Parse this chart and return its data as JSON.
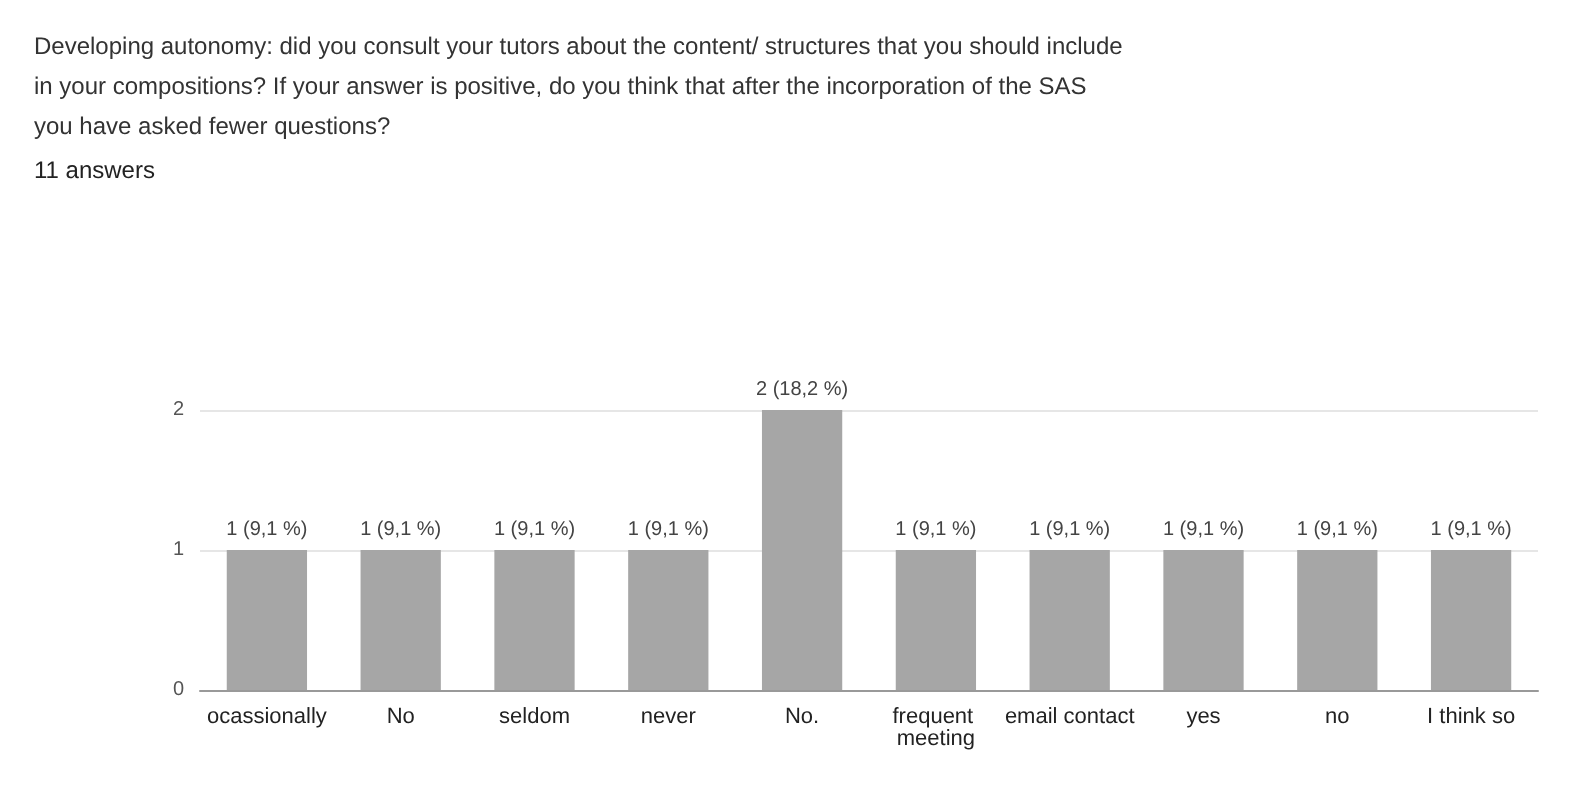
{
  "chart_data": {
    "type": "bar",
    "title": "Developing autonomy: did you consult your tutors about the content/ structures that you should include in your compositions? If your answer is positive, do you think that after the incorporation of the SAS you have asked fewer questions?",
    "subtitle": "11 answers",
    "categories": [
      "ocassionally",
      "No",
      "seldom",
      "never",
      "No.",
      "frequent meeting",
      "email contact",
      "yes",
      "no",
      "I think so"
    ],
    "values": [
      1,
      1,
      1,
      1,
      2,
      1,
      1,
      1,
      1,
      1
    ],
    "value_labels": [
      "1 (9,1 %)",
      "1 (9,1 %)",
      "1 (9,1 %)",
      "1 (9,1 %)",
      "2 (18,2 %)",
      "1 (9,1 %)",
      "1 (9,1 %)",
      "1 (9,1 %)",
      "1 (9,1 %)",
      "1 (9,1 %)"
    ],
    "color": "#a6a6a6",
    "ylim": [
      0,
      2
    ],
    "yticks": [
      0,
      1,
      2
    ],
    "grid": "y"
  }
}
